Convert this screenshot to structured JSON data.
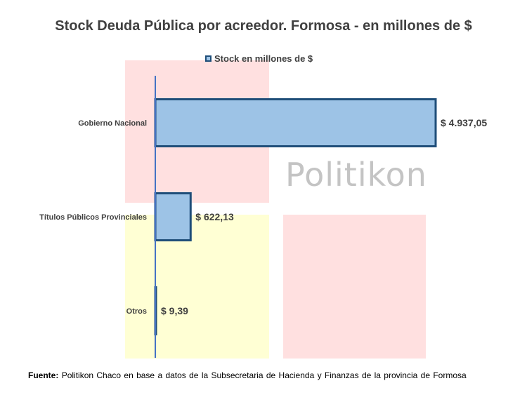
{
  "title": "Stock Deuda Pública por acreedor. Formosa - en millones de $",
  "watermark_text": "Politikon",
  "source_label": "Fuente:",
  "source_text": "Politikon Chaco en base a datos de la Subsecretaria de Hacienda y Finanzas de la provincia de Formosa",
  "colors": {
    "bar_fill": "#9dc3e6",
    "bar_stroke": "#1f4e79",
    "axis": "#4472c4",
    "logo_red": "#ffe0e0",
    "logo_yellow": "#ffffd4"
  },
  "chart_data": {
    "type": "bar",
    "orientation": "horizontal",
    "categories": [
      "Gobierno Nacional",
      "Títulos Públicos Provinciales",
      "Otros"
    ],
    "series": [
      {
        "name": "Stock en millones de $",
        "values": [
          4937.05,
          622.13,
          9.39
        ]
      }
    ],
    "value_labels": [
      "$ 4.937,05",
      "$ 622,13",
      "$ 9,39"
    ],
    "legend_position": "top",
    "grid": false,
    "xlim": [
      0,
      5000
    ]
  }
}
